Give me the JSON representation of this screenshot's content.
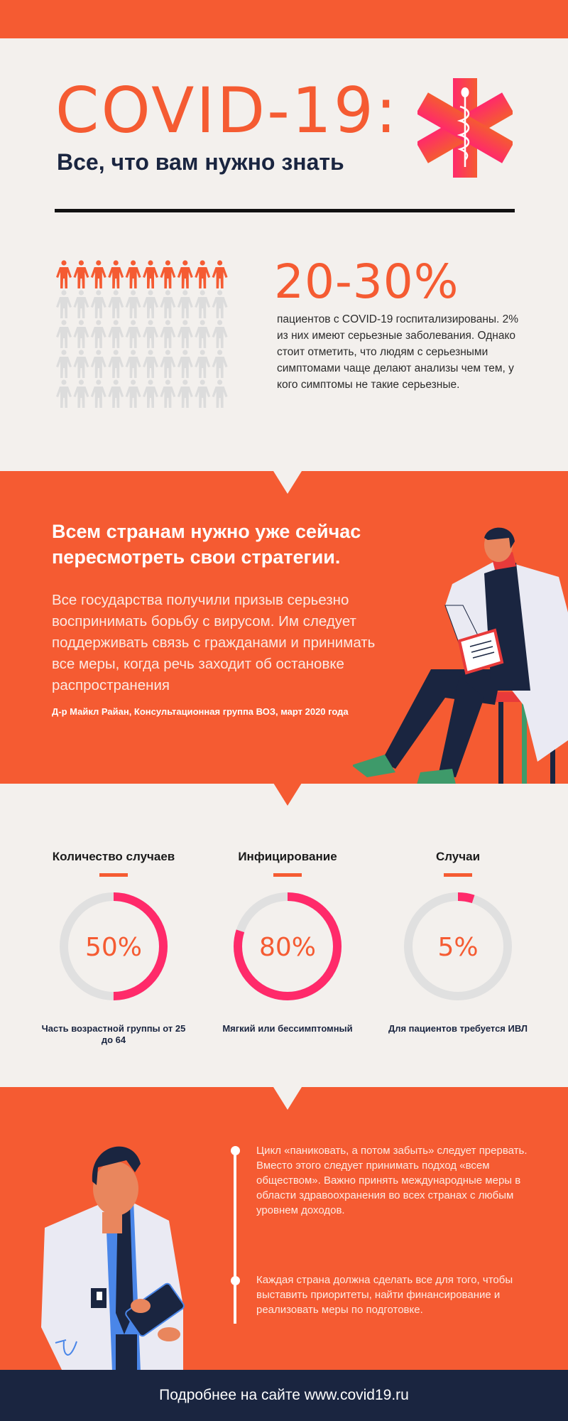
{
  "colors": {
    "orange": "#F55B32",
    "pink": "#FF2A6A",
    "beige": "#F3F0ED",
    "navy": "#1A2540",
    "ring_track": "#E0E0E0",
    "people_inactive": "#DCDCDC"
  },
  "header": {
    "title": "COVID-19:",
    "subtitle": "Все, что вам нужно знать",
    "icon": "star-of-life-icon"
  },
  "hospital_stat": {
    "value": "20-30%",
    "description": "пациентов с COVID-19 госпитализированы. 2% из них имеют серьезные заболевания. Однако стоит отметить, что людям с серьезными симптомами чаще делают анализы чем тем, у кого симптомы не такие серьезные.",
    "people_grid": {
      "columns": 10,
      "rows": 5,
      "highlighted_rows": 1,
      "icon": "person-icon"
    }
  },
  "quote": {
    "heading": "Всем странам нужно уже сейчас пересмотреть свои стратегии.",
    "body": "Все государства получили призыв серьезно воспринимать борьбу с вирусом. Им следует поддерживать связь с гражданами и принимать все меры, когда речь заходит об остановке распространения",
    "citation": "Д-р Майкл Райан, Консультационная группа ВОЗ, март 2020 года"
  },
  "stats": [
    {
      "heading": "Количество случаев",
      "value_label": "50%",
      "percent": 50,
      "caption": "Часть возрастной группы от 25 до 64"
    },
    {
      "heading": "Инфицирование",
      "value_label": "80%",
      "percent": 80,
      "caption": "Мягкий или бессимптомный"
    },
    {
      "heading": "Случаи",
      "value_label": "5%",
      "percent": 5,
      "caption": "Для пациентов требуется ИВЛ"
    }
  ],
  "timeline": [
    {
      "text": "Цикл «паниковать, а потом забыть» следует прервать. Вместо этого следует принимать подход «всем обществом». Важно принять международные меры в области здравоохранения во всех странах с любым уровнем доходов."
    },
    {
      "text": "Каждая страна должна сделать все для того, чтобы выставить приоритеты, найти финансирование и реализовать меры по подготовке."
    }
  ],
  "footer": {
    "text": "Подробнее на сайте www.covid19.ru"
  }
}
